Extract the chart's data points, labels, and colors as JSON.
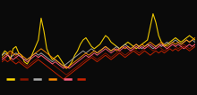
{
  "background_color": "#0a0a0a",
  "line_colors": [
    "#FFD700",
    "#8B1500",
    "#aaaaaa",
    "#FF8C00",
    "#FF6080",
    "#CC2200"
  ],
  "line_widths": [
    0.8,
    0.7,
    0.7,
    0.7,
    0.7,
    0.7
  ],
  "legend_colors": [
    "#FFD700",
    "#8B1500",
    "#aaaaaa",
    "#FF8C00",
    "#FF6080",
    "#CC2200"
  ],
  "ylim": [
    -1.2,
    2.5
  ],
  "yellow_data": [
    0.1,
    0.3,
    0.2,
    -0.1,
    0.4,
    0.5,
    0.2,
    0.1,
    -0.2,
    -0.3,
    -0.1,
    0.2,
    0.5,
    0.8,
    1.8,
    1.2,
    0.4,
    0.1,
    -0.1,
    0.0,
    0.1,
    -0.1,
    -0.3,
    -0.5,
    -0.4,
    -0.2,
    0.1,
    0.3,
    0.6,
    0.8,
    0.9,
    0.7,
    0.5,
    0.4,
    0.5,
    0.6,
    0.8,
    1.0,
    0.9,
    0.7,
    0.6,
    0.5,
    0.4,
    0.5,
    0.6,
    0.7,
    0.6,
    0.5,
    0.4,
    0.5,
    0.6,
    0.7,
    0.8,
    1.4,
    2.0,
    1.6,
    1.0,
    0.7,
    0.5,
    0.6,
    0.7,
    0.8,
    0.9,
    0.8,
    0.7,
    0.8,
    0.9,
    1.0,
    0.9,
    0.8
  ],
  "darkred_data": [
    0.0,
    -0.1,
    0.1,
    0.2,
    0.1,
    0.0,
    -0.1,
    -0.2,
    -0.3,
    -0.4,
    -0.3,
    -0.2,
    -0.1,
    0.0,
    0.1,
    0.0,
    -0.1,
    -0.2,
    -0.3,
    -0.4,
    -0.5,
    -0.6,
    -0.7,
    -0.8,
    -0.7,
    -0.6,
    -0.5,
    -0.4,
    -0.3,
    -0.2,
    -0.1,
    0.0,
    0.1,
    0.0,
    -0.1,
    0.0,
    0.1,
    0.2,
    0.1,
    0.0,
    0.1,
    0.2,
    0.3,
    0.2,
    0.1,
    0.2,
    0.3,
    0.4,
    0.3,
    0.2,
    0.3,
    0.4,
    0.5,
    0.4,
    0.3,
    0.4,
    0.5,
    0.4,
    0.3,
    0.4,
    0.5,
    0.6,
    0.5,
    0.4,
    0.5,
    0.6,
    0.5,
    0.4,
    0.5,
    0.6
  ],
  "gray_data": [
    0.1,
    0.2,
    0.1,
    0.0,
    0.1,
    0.2,
    0.1,
    0.0,
    -0.1,
    -0.1,
    0.0,
    0.1,
    0.2,
    0.1,
    0.2,
    0.1,
    0.0,
    -0.1,
    -0.2,
    -0.1,
    -0.2,
    -0.3,
    -0.4,
    -0.3,
    -0.2,
    -0.1,
    0.0,
    0.1,
    0.2,
    0.3,
    0.2,
    0.3,
    0.4,
    0.3,
    0.2,
    0.3,
    0.4,
    0.5,
    0.4,
    0.3,
    0.4,
    0.5,
    0.4,
    0.5,
    0.6,
    0.5,
    0.4,
    0.5,
    0.6,
    0.5,
    0.4,
    0.5,
    0.6,
    0.5,
    0.4,
    0.5,
    0.6,
    0.5,
    0.6,
    0.7,
    0.6,
    0.7,
    0.8,
    0.7,
    0.6,
    0.7,
    0.8,
    0.7,
    0.8,
    0.7
  ],
  "orange_data": [
    0.0,
    0.1,
    0.2,
    0.3,
    0.2,
    0.1,
    0.2,
    0.1,
    0.0,
    -0.1,
    0.0,
    0.1,
    0.2,
    0.3,
    0.4,
    0.3,
    0.2,
    0.1,
    0.0,
    -0.1,
    -0.2,
    -0.3,
    -0.4,
    -0.5,
    -0.4,
    -0.3,
    -0.2,
    -0.1,
    0.0,
    0.1,
    0.2,
    0.1,
    0.2,
    0.3,
    0.2,
    0.3,
    0.4,
    0.5,
    0.4,
    0.3,
    0.4,
    0.3,
    0.4,
    0.5,
    0.4,
    0.5,
    0.4,
    0.5,
    0.6,
    0.5,
    0.6,
    0.5,
    0.6,
    0.7,
    0.6,
    0.5,
    0.6,
    0.7,
    0.6,
    0.5,
    0.6,
    0.7,
    0.6,
    0.7,
    0.6,
    0.7,
    0.8,
    0.7,
    0.8,
    0.9
  ],
  "pink_data": [
    -0.1,
    0.0,
    0.1,
    0.0,
    -0.1,
    0.0,
    0.1,
    0.0,
    -0.1,
    -0.2,
    -0.1,
    0.0,
    0.1,
    0.0,
    0.1,
    0.0,
    -0.1,
    -0.2,
    -0.3,
    -0.2,
    -0.3,
    -0.4,
    -0.5,
    -0.4,
    -0.5,
    -0.4,
    -0.3,
    -0.2,
    -0.1,
    0.0,
    0.1,
    0.0,
    0.1,
    0.2,
    0.1,
    0.2,
    0.3,
    0.4,
    0.3,
    0.2,
    0.3,
    0.4,
    0.3,
    0.4,
    0.5,
    0.4,
    0.3,
    0.4,
    0.5,
    0.4,
    0.5,
    0.4,
    0.5,
    0.6,
    0.5,
    0.4,
    0.5,
    0.6,
    0.5,
    0.4,
    0.5,
    0.6,
    0.5,
    0.6,
    0.5,
    0.4,
    0.5,
    0.6,
    0.5,
    0.6
  ],
  "red2_data": [
    -0.2,
    -0.1,
    -0.2,
    -0.1,
    -0.2,
    -0.3,
    -0.2,
    -0.3,
    -0.4,
    -0.5,
    -0.4,
    -0.3,
    -0.2,
    -0.1,
    -0.2,
    -0.3,
    -0.4,
    -0.5,
    -0.6,
    -0.7,
    -0.8,
    -0.9,
    -1.0,
    -0.9,
    -0.8,
    -0.7,
    -0.6,
    -0.5,
    -0.4,
    -0.3,
    -0.2,
    -0.1,
    0.0,
    -0.1,
    -0.2,
    -0.1,
    0.0,
    0.1,
    0.0,
    -0.1,
    0.0,
    0.1,
    0.2,
    0.1,
    0.0,
    0.1,
    0.2,
    0.3,
    0.2,
    0.1,
    0.2,
    0.3,
    0.2,
    0.1,
    0.2,
    0.3,
    0.2,
    0.3,
    0.2,
    0.3,
    0.4,
    0.3,
    0.4,
    0.3,
    0.4,
    0.5,
    0.4,
    0.3,
    0.4,
    0.5
  ]
}
